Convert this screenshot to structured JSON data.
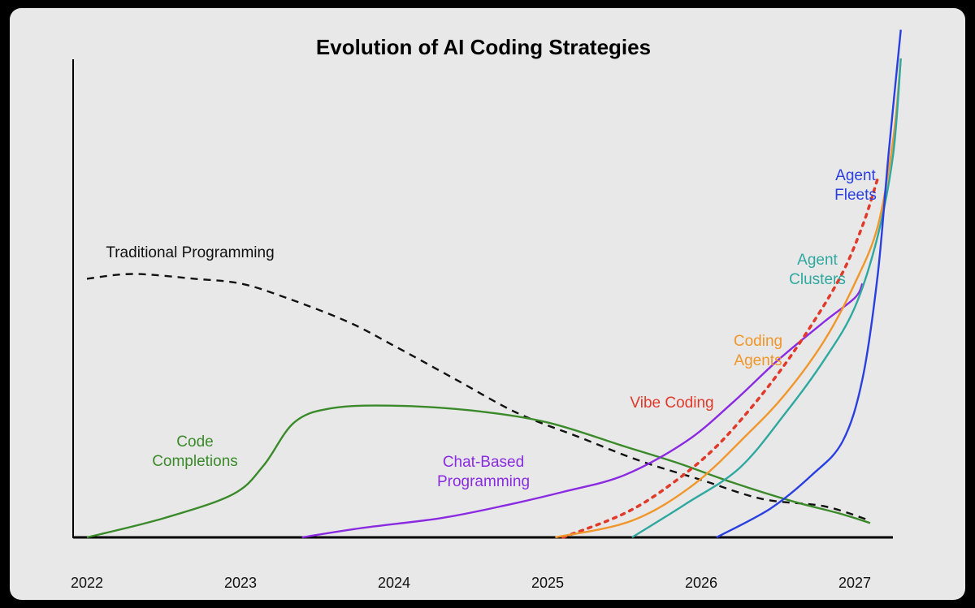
{
  "chart_data": {
    "type": "line",
    "title": "Evolution of AI Coding Strategies",
    "xlabel": "",
    "ylabel": "",
    "x_ticks": [
      "2022",
      "2023",
      "2024",
      "2025",
      "2026",
      "2027"
    ],
    "xlim": [
      2022,
      2027.2
    ],
    "ylim": [
      0,
      100
    ],
    "grid": false,
    "legend": "none",
    "series": [
      {
        "id": "traditional",
        "name": "Traditional Programming",
        "color": "#111111",
        "dash": "dashed",
        "label_lines": [
          "Traditional Programming"
        ],
        "points": [
          [
            2022,
            54
          ],
          [
            2022.3,
            55
          ],
          [
            2022.7,
            54
          ],
          [
            2023,
            53
          ],
          [
            2023.3,
            50
          ],
          [
            2023.7,
            45
          ],
          [
            2024,
            40
          ],
          [
            2024.4,
            33
          ],
          [
            2024.8,
            26
          ],
          [
            2025.2,
            21
          ],
          [
            2025.6,
            16
          ],
          [
            2026,
            12
          ],
          [
            2026.4,
            8
          ],
          [
            2026.8,
            6.5
          ],
          [
            2027.1,
            3.5
          ]
        ]
      },
      {
        "id": "code_completions",
        "name": "Code Completions",
        "color": "#3a8a2a",
        "dash": "solid",
        "label_lines": [
          "Code",
          "Completions"
        ],
        "points": [
          [
            2022,
            0
          ],
          [
            2022.5,
            4
          ],
          [
            2022.95,
            9
          ],
          [
            2023.15,
            15
          ],
          [
            2023.35,
            24
          ],
          [
            2023.6,
            27
          ],
          [
            2024,
            27.5
          ],
          [
            2024.5,
            26.5
          ],
          [
            2025,
            24
          ],
          [
            2025.5,
            19
          ],
          [
            2025.85,
            15.5
          ],
          [
            2026.2,
            11.5
          ],
          [
            2026.6,
            7.5
          ],
          [
            2026.9,
            5
          ],
          [
            2027.1,
            3
          ]
        ]
      },
      {
        "id": "chat_based",
        "name": "Chat-Based Programming",
        "color": "#8a2be2",
        "dash": "solid",
        "label_lines": [
          "Chat-Based",
          "Programming"
        ],
        "points": [
          [
            2023.4,
            0
          ],
          [
            2023.8,
            2
          ],
          [
            2024.3,
            4
          ],
          [
            2024.7,
            6.5
          ],
          [
            2025.1,
            9.5
          ],
          [
            2025.5,
            13
          ],
          [
            2025.9,
            20
          ],
          [
            2026.2,
            28
          ],
          [
            2026.5,
            37
          ],
          [
            2026.8,
            45
          ],
          [
            2027.0,
            50
          ],
          [
            2027.05,
            53
          ]
        ]
      },
      {
        "id": "vibe_coding",
        "name": "Vibe Coding",
        "color": "#e03a2a",
        "dash": "dotted",
        "label_lines": [
          "Vibe Coding"
        ],
        "points": [
          [
            2025.1,
            0
          ],
          [
            2025.5,
            5
          ],
          [
            2025.8,
            11
          ],
          [
            2026.1,
            19
          ],
          [
            2026.4,
            30
          ],
          [
            2026.65,
            41
          ],
          [
            2026.9,
            54
          ],
          [
            2027.05,
            65
          ],
          [
            2027.15,
            75
          ]
        ]
      },
      {
        "id": "coding_agents",
        "name": "Coding Agents",
        "color": "#f0962a",
        "dash": "solid",
        "label_lines": [
          "Coding",
          "Agents"
        ],
        "points": [
          [
            2025.05,
            0
          ],
          [
            2025.55,
            3.5
          ],
          [
            2025.95,
            11
          ],
          [
            2026.3,
            21.5
          ],
          [
            2026.55,
            30
          ],
          [
            2026.8,
            41
          ],
          [
            2027.0,
            53
          ],
          [
            2027.15,
            65
          ],
          [
            2027.25,
            83
          ],
          [
            2027.3,
            100
          ]
        ]
      },
      {
        "id": "agent_clusters",
        "name": "Agent Clusters",
        "color": "#2fa8a0",
        "dash": "solid",
        "label_lines": [
          "Agent",
          "Clusters"
        ],
        "points": [
          [
            2025.55,
            0
          ],
          [
            2025.9,
            7
          ],
          [
            2026.25,
            14.5
          ],
          [
            2026.55,
            26
          ],
          [
            2026.8,
            37
          ],
          [
            2027.0,
            48
          ],
          [
            2027.15,
            63
          ],
          [
            2027.25,
            80
          ],
          [
            2027.3,
            100
          ]
        ]
      },
      {
        "id": "agent_fleets",
        "name": "Agent Fleets",
        "color": "#2a3fe0",
        "dash": "solid",
        "label_lines": [
          "Agent",
          "Fleets"
        ],
        "points": [
          [
            2026.1,
            0
          ],
          [
            2026.45,
            6
          ],
          [
            2026.72,
            13
          ],
          [
            2026.92,
            20
          ],
          [
            2027.05,
            33
          ],
          [
            2027.15,
            55
          ],
          [
            2027.22,
            80
          ],
          [
            2027.3,
            106
          ]
        ]
      }
    ]
  }
}
